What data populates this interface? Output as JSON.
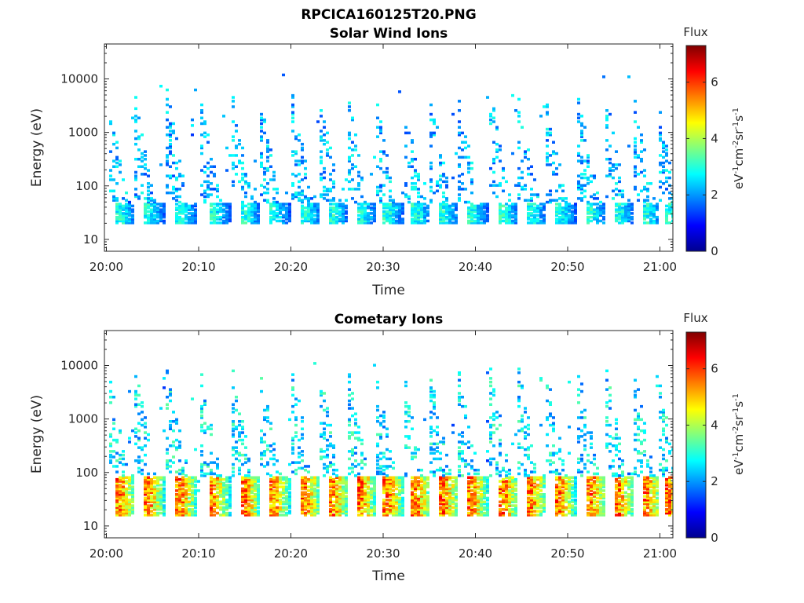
{
  "figure": {
    "title": "RPCICA160125T20.PNG"
  },
  "chart_data": [
    {
      "type": "heatmap",
      "title": "Solar Wind Ions",
      "xlabel": "Time",
      "ylabel": "Energy (eV)",
      "x_ticks": [
        "20:00",
        "20:10",
        "20:20",
        "20:30",
        "20:40",
        "20:50",
        "21:00"
      ],
      "x_range_minutes": [
        0,
        61.5
      ],
      "y_scale": "log",
      "y_ticks": [
        "10",
        "100",
        "1000",
        "10000"
      ],
      "y_range": [
        6,
        45000
      ],
      "colorbar": {
        "label": "eV-1cm-2sr-1s-1",
        "title": "Flux",
        "range": [
          0,
          7.3
        ],
        "ticks": [
          "0",
          "2",
          "4",
          "6"
        ]
      },
      "bursts_minutes": [
        1.5,
        4.5,
        8,
        11.5,
        15,
        18,
        21.5,
        24.5,
        27.5,
        30.5,
        33.5,
        36.5,
        39.5,
        43,
        46,
        49,
        52.5,
        55.5,
        58.5,
        61
      ],
      "band_energy_ev": [
        18,
        45
      ],
      "band_flux": 3.3,
      "scattered_flux": 2.6
    },
    {
      "type": "heatmap",
      "title": "Cometary Ions",
      "xlabel": "Time",
      "ylabel": "Energy (eV)",
      "x_ticks": [
        "20:00",
        "20:10",
        "20:20",
        "20:30",
        "20:40",
        "20:50",
        "21:00"
      ],
      "x_range_minutes": [
        0,
        61.5
      ],
      "y_scale": "log",
      "y_ticks": [
        "10",
        "100",
        "1000",
        "10000"
      ],
      "y_range": [
        6,
        45000
      ],
      "colorbar": {
        "label": "eV-1cm-2sr-1s-1",
        "title": "Flux",
        "range": [
          0,
          7.3
        ],
        "ticks": [
          "0",
          "2",
          "4",
          "6"
        ]
      },
      "bursts_minutes": [
        1.5,
        4.5,
        8,
        11.5,
        15,
        18,
        21.5,
        24.5,
        27.5,
        30.5,
        33.5,
        36.5,
        39.5,
        43,
        46,
        49,
        52.5,
        55.5,
        58.5,
        61
      ],
      "band_energy_ev": [
        15,
        80
      ],
      "band_flux": 6.2,
      "scattered_flux": 3.0
    }
  ]
}
